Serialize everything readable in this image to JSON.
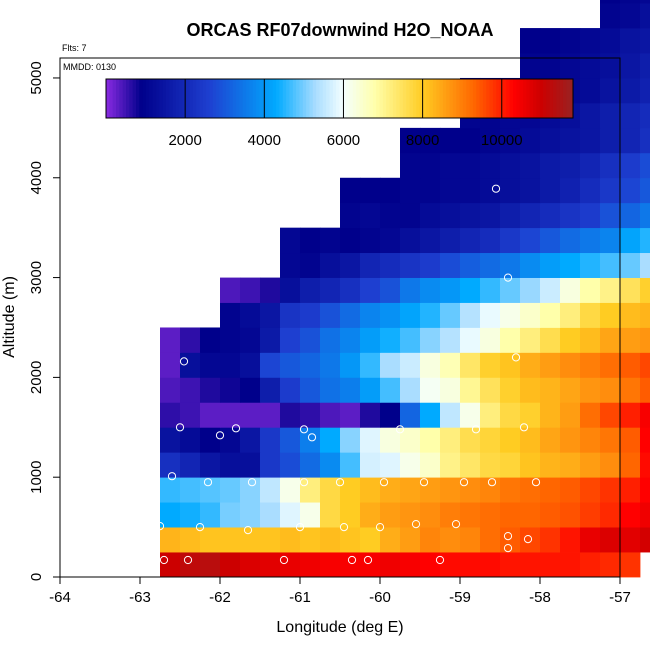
{
  "chart_data": {
    "type": "heatmap",
    "title": "ORCAS RF07downwind H2O_NOAA",
    "annotations": {
      "flights": "Flts: 7",
      "date": "MMDD: 0130"
    },
    "xlabel": "Longitude (deg E)",
    "ylabel": "Altitude (m)",
    "xlim": [
      -64,
      -57
    ],
    "ylim": [
      0,
      5200
    ],
    "x_ticks": [
      -64,
      -63,
      -62,
      -61,
      -60,
      -59,
      -58,
      -57
    ],
    "x_tick_labels": [
      "-64",
      "-63",
      "-62",
      "-61",
      "-60",
      "-59",
      "-58",
      "-57"
    ],
    "y_ticks": [
      0,
      1000,
      2000,
      3000,
      4000,
      5000
    ],
    "y_tick_labels": [
      "0",
      "1000",
      "2000",
      "3000",
      "4000",
      "5000"
    ],
    "colorbar": {
      "range": [
        0,
        11800
      ],
      "ticks": [
        2000,
        4000,
        6000,
        8000,
        10000
      ],
      "tick_labels": [
        "2000",
        "4000",
        "6000",
        "8000",
        "10000"
      ],
      "stops": [
        {
          "v": 0,
          "color": "#8a2be2"
        },
        {
          "v": 900,
          "color": "#00008b"
        },
        {
          "v": 2600,
          "color": "#1e3fd0"
        },
        {
          "v": 4300,
          "color": "#00aaff"
        },
        {
          "v": 5300,
          "color": "#aaddff"
        },
        {
          "v": 6000,
          "color": "#f4ffff"
        },
        {
          "v": 6800,
          "color": "#ffffaa"
        },
        {
          "v": 8000,
          "color": "#ffcc22"
        },
        {
          "v": 9300,
          "color": "#ff6600"
        },
        {
          "v": 10300,
          "color": "#ff0000"
        },
        {
          "v": 11000,
          "color": "#cc0000"
        },
        {
          "v": 11800,
          "color": "#992222"
        }
      ]
    },
    "grid_x0": -62.75,
    "grid_dx": 0.25,
    "grid_y0": 0,
    "grid_dy": 250,
    "cells": [
      {
        "row": 0,
        "col_start": 0,
        "values": [
          11000,
          11200,
          11300,
          11000,
          10800,
          10700,
          10600,
          10500,
          10400,
          10400,
          10400,
          10500,
          10400,
          10300,
          10200,
          10200,
          10200,
          10100,
          10100,
          10100,
          10100,
          10000,
          9900,
          9800
        ]
      },
      {
        "row": 1,
        "col_start": 0,
        "values": [
          8300,
          8200,
          8100,
          8100,
          8100,
          8100,
          8200,
          8100,
          8200,
          8100,
          8000,
          8400,
          8600,
          8900,
          8800,
          8900,
          9200,
          9400,
          9600,
          9800,
          10100,
          10600,
          10800,
          10700,
          10900,
          11100,
          11300,
          11500
        ]
      },
      {
        "row": 2,
        "col_start": 0,
        "values": [
          4300,
          4400,
          4600,
          5000,
          5100,
          5300,
          5800,
          6200,
          7700,
          8000,
          8400,
          8600,
          8700,
          8800,
          9000,
          9100,
          9200,
          9300,
          9300,
          9400,
          9500,
          9700,
          9900,
          10300,
          10500,
          10900,
          11000,
          11100
        ]
      },
      {
        "row": 3,
        "col_start": 0,
        "values": [
          4600,
          4700,
          4800,
          4900,
          5100,
          5500,
          6200,
          7200,
          7700,
          8000,
          8200,
          8400,
          8500,
          8600,
          8700,
          8800,
          8900,
          9100,
          9200,
          9300,
          9400,
          9600,
          9800,
          10000,
          10300,
          10600,
          10700,
          10900
        ]
      },
      {
        "row": 4,
        "col_start": 0,
        "values": [
          2200,
          1900,
          1500,
          1300,
          1300,
          2400,
          2800,
          3300,
          3800,
          4700,
          5700,
          5800,
          6200,
          6500,
          7100,
          7400,
          7700,
          7800,
          8100,
          8300,
          8400,
          8600,
          8800,
          9300,
          10200,
          10500,
          10600,
          10700
        ]
      },
      {
        "row": 5,
        "col_start": 0,
        "values": [
          1400,
          1200,
          900,
          1100,
          1500,
          2400,
          3000,
          3600,
          4300,
          5100,
          5800,
          6300,
          6500,
          6800,
          7200,
          7600,
          7800,
          8000,
          8200,
          8500,
          8700,
          8900,
          9100,
          9400,
          10300,
          10500,
          10600,
          10800
        ]
      },
      {
        "row": 6,
        "col_start": 0,
        "values": [
          600,
          500,
          300,
          300,
          300,
          300,
          700,
          600,
          400,
          300,
          700,
          900,
          3200,
          4300,
          5500,
          6200,
          7200,
          7700,
          7900,
          8300,
          8600,
          9200,
          9600,
          10000,
          10400,
          10600,
          10700,
          10700
        ]
      },
      {
        "row": 7,
        "col_start": 0,
        "values": [
          400,
          500,
          700,
          800,
          900,
          1700,
          2500,
          3000,
          3400,
          3600,
          4100,
          4700,
          5300,
          6100,
          6300,
          7000,
          7500,
          7900,
          8200,
          8300,
          8500,
          8700,
          8800,
          9100,
          9400
        ]
      },
      {
        "row": 8,
        "col_start": 0,
        "values": [
          300,
          1300,
          1100,
          1100,
          1300,
          2700,
          3000,
          3200,
          3500,
          4000,
          4600,
          5300,
          5600,
          6300,
          6700,
          7400,
          7900,
          8100,
          8400,
          8600,
          8800,
          9000,
          9200,
          9400,
          9600
        ]
      },
      {
        "row": 9,
        "col_start": 0,
        "values": [
          300,
          600,
          900,
          1000,
          1100,
          1600,
          2600,
          2900,
          3400,
          3700,
          4100,
          4400,
          4700,
          5100,
          5400,
          5900,
          6300,
          6800,
          7200,
          7600,
          8000,
          8200,
          8500,
          8600,
          8700
        ]
      },
      {
        "row": 10,
        "col_start": 3,
        "values": [
          1000,
          1200,
          1500,
          2300,
          2500,
          2900,
          3300,
          3700,
          3900,
          4200,
          4500,
          4900,
          5400,
          5900,
          6200,
          6500,
          6800,
          7200,
          7700,
          8000,
          8200,
          8300
        ]
      },
      {
        "row": 11,
        "col_start": 3,
        "values": [
          400,
          500,
          700,
          1300,
          1700,
          1900,
          2200,
          2600,
          2900,
          3500,
          3800,
          4000,
          4300,
          4600,
          4900,
          5200,
          5600,
          6300,
          6800,
          7100,
          7500,
          7900
        ]
      },
      {
        "row": 12,
        "col_start": 6,
        "values": [
          1100,
          1000,
          1300,
          1500,
          1900,
          2100,
          2300,
          2500,
          2800,
          3100,
          3300,
          3500,
          3800,
          4100,
          4300,
          4500,
          4700,
          4900,
          5300
        ]
      },
      {
        "row": 13,
        "col_start": 6,
        "values": [
          1100,
          900,
          1000,
          900,
          1000,
          1100,
          1300,
          1500,
          1700,
          1900,
          2100,
          2400,
          2700,
          3000,
          3300,
          3500,
          3700,
          4200,
          4500
        ]
      },
      {
        "row": 14,
        "col_start": 9,
        "values": [
          1000,
          1100,
          1000,
          1000,
          1200,
          1300,
          1400,
          1500,
          1700,
          1900,
          2100,
          2300,
          2500,
          2900,
          3200,
          3500
        ]
      },
      {
        "row": 15,
        "col_start": 9,
        "values": [
          900,
          900,
          900,
          1000,
          1000,
          1100,
          1100,
          1200,
          1300,
          1400,
          1600,
          1800,
          2100,
          2400,
          2700,
          3000
        ]
      },
      {
        "row": 16,
        "col_start": 12,
        "values": [
          1000,
          1000,
          1100,
          1100,
          1200,
          1300,
          1400,
          1600,
          1700,
          1900,
          2200,
          2500,
          2800
        ]
      },
      {
        "row": 17,
        "col_start": 12,
        "values": [
          900,
          900,
          900,
          900,
          1000,
          1100,
          1200,
          1300,
          1400,
          1500,
          1700,
          1900,
          2200
        ]
      },
      {
        "row": 18,
        "col_start": 15,
        "values": [
          1000,
          1000,
          1100,
          1100,
          1200,
          1300,
          1500,
          1700,
          1900,
          2100
        ]
      },
      {
        "row": 19,
        "col_start": 15,
        "values": [
          900,
          900,
          900,
          1000,
          1100,
          1100,
          1200,
          1400,
          1600,
          1800
        ]
      },
      {
        "row": 20,
        "col_start": 18,
        "values": [
          1000,
          1000,
          1100,
          1200,
          1300,
          1500,
          1700
        ]
      },
      {
        "row": 21,
        "col_start": 18,
        "values": [
          900,
          900,
          1000,
          1100,
          1200,
          1400,
          1500
        ]
      },
      {
        "row": 22,
        "col_start": 22,
        "values": [
          1000,
          1100,
          1300
        ]
      },
      {
        "row": 23,
        "col_start": 22,
        "values": [
          900,
          1000,
          1100
        ]
      },
      {
        "row": 24,
        "col_start": 24,
        "values": [
          1000
        ]
      },
      {
        "row": 25,
        "col_start": 24,
        "values": [
          900
        ]
      }
    ],
    "sample_points": [
      {
        "x": -62.7,
        "y": 170
      },
      {
        "x": -62.4,
        "y": 170
      },
      {
        "x": -61.2,
        "y": 170
      },
      {
        "x": -60.35,
        "y": 170
      },
      {
        "x": -60.15,
        "y": 170
      },
      {
        "x": -59.25,
        "y": 170
      },
      {
        "x": -62.75,
        "y": 510
      },
      {
        "x": -62.25,
        "y": 500
      },
      {
        "x": -61.65,
        "y": 470
      },
      {
        "x": -61.0,
        "y": 500
      },
      {
        "x": -60.45,
        "y": 500
      },
      {
        "x": -60.0,
        "y": 500
      },
      {
        "x": -59.55,
        "y": 530
      },
      {
        "x": -59.05,
        "y": 530
      },
      {
        "x": -58.4,
        "y": 410
      },
      {
        "x": -58.15,
        "y": 380
      },
      {
        "x": -58.4,
        "y": 290
      },
      {
        "x": -62.6,
        "y": 1010
      },
      {
        "x": -62.15,
        "y": 950
      },
      {
        "x": -61.6,
        "y": 950
      },
      {
        "x": -60.95,
        "y": 950
      },
      {
        "x": -60.5,
        "y": 950
      },
      {
        "x": -59.95,
        "y": 950
      },
      {
        "x": -59.45,
        "y": 950
      },
      {
        "x": -58.95,
        "y": 950
      },
      {
        "x": -58.6,
        "y": 950
      },
      {
        "x": -58.05,
        "y": 950
      },
      {
        "x": -62.5,
        "y": 1500
      },
      {
        "x": -62.0,
        "y": 1420
      },
      {
        "x": -61.8,
        "y": 1490
      },
      {
        "x": -60.95,
        "y": 1480
      },
      {
        "x": -60.85,
        "y": 1400
      },
      {
        "x": -59.75,
        "y": 1480
      },
      {
        "x": -58.8,
        "y": 1480
      },
      {
        "x": -58.2,
        "y": 1500
      },
      {
        "x": -62.45,
        "y": 2160
      },
      {
        "x": -58.3,
        "y": 2200
      },
      {
        "x": -58.4,
        "y": 3000
      },
      {
        "x": -58.55,
        "y": 3890
      }
    ]
  }
}
